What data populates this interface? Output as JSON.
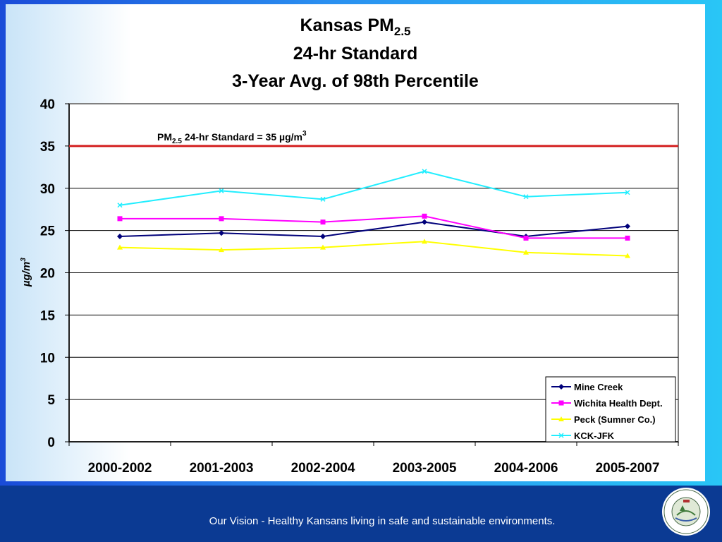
{
  "chart_data": {
    "type": "line",
    "title_main": "Kansas PM",
    "title_sub": "2.5",
    "title_line2": "24-hr Standard",
    "title_line3": "3-Year Avg. of 98th Percentile",
    "ylabel_main": "µg/m",
    "ylabel_sup": "3",
    "ylim": [
      0,
      40
    ],
    "yticks": [
      0,
      5,
      10,
      15,
      20,
      25,
      30,
      35,
      40
    ],
    "categories": [
      "2000-2002",
      "2001-2003",
      "2002-2004",
      "2003-2005",
      "2004-2006",
      "2005-2007"
    ],
    "grid": true,
    "legend_position": "bottom-right",
    "standard": {
      "value": 35,
      "color": "#d42020",
      "label_pre": "PM",
      "label_sub": "2.5",
      "label_mid": " 24-hr Standard = 35 µg/m",
      "label_sup": "3"
    },
    "series": [
      {
        "name": "Mine Creek",
        "color": "#00007a",
        "marker": "diamond",
        "values": [
          24.3,
          24.7,
          24.3,
          26.0,
          24.3,
          25.5
        ]
      },
      {
        "name": "Wichita Health Dept.",
        "color": "#ff00ff",
        "marker": "square",
        "values": [
          26.4,
          26.4,
          26.0,
          26.7,
          24.1,
          24.1
        ]
      },
      {
        "name": "Peck (Sumner Co.)",
        "color": "#ffff00",
        "marker": "triangle",
        "values": [
          23.0,
          22.7,
          23.0,
          23.7,
          22.4,
          22.0
        ]
      },
      {
        "name": "KCK-JFK",
        "color": "#22eeff",
        "marker": "x",
        "values": [
          28.0,
          29.7,
          28.7,
          32.0,
          29.0,
          29.5
        ]
      }
    ]
  },
  "footer": {
    "tagline": "Our Vision - Healthy Kansans living in safe and sustainable environments.",
    "seal_text": "KANSAS DEPARTMENT OF HEALTH & ENVIRONMENT"
  }
}
